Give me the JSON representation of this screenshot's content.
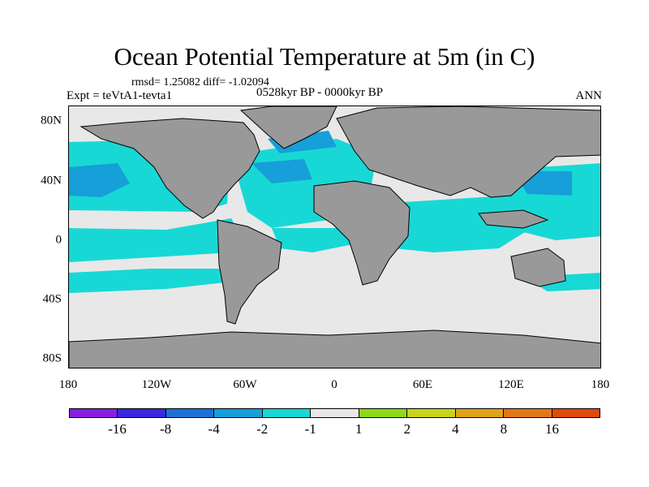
{
  "title": "Ocean Potential Temperature at 5m (in C)",
  "stats": "rmsd= 1.25082 diff= -1.02094",
  "experiment": "Expt = teVtA1-tevta1",
  "period": "0528kyr BP - 0000kyr BP",
  "season": "ANN",
  "x_ticks": [
    "180",
    "120W",
    "60W",
    "0",
    "60E",
    "120E",
    "180"
  ],
  "y_ticks": [
    "80N",
    "40N",
    "0",
    "40S",
    "80S"
  ],
  "colorbar": {
    "colors": [
      "#8a1fe0",
      "#3a28e0",
      "#1f6fd8",
      "#169fd8",
      "#18d8d6",
      "#e8e8e8",
      "#8fd81a",
      "#c8d41a",
      "#e0a41a",
      "#e0781a",
      "#e04a0f"
    ],
    "labels": [
      "-16",
      "-8",
      "-4",
      "-2",
      "-1",
      "1",
      "2",
      "4",
      "8",
      "16"
    ]
  },
  "map_colors": {
    "land": "#999999",
    "ocean_neutral": "#e8e8e8",
    "cool_light": "#18d8d6",
    "cool_mid": "#169fd8",
    "cool_strong": "#1f6fd8"
  }
}
